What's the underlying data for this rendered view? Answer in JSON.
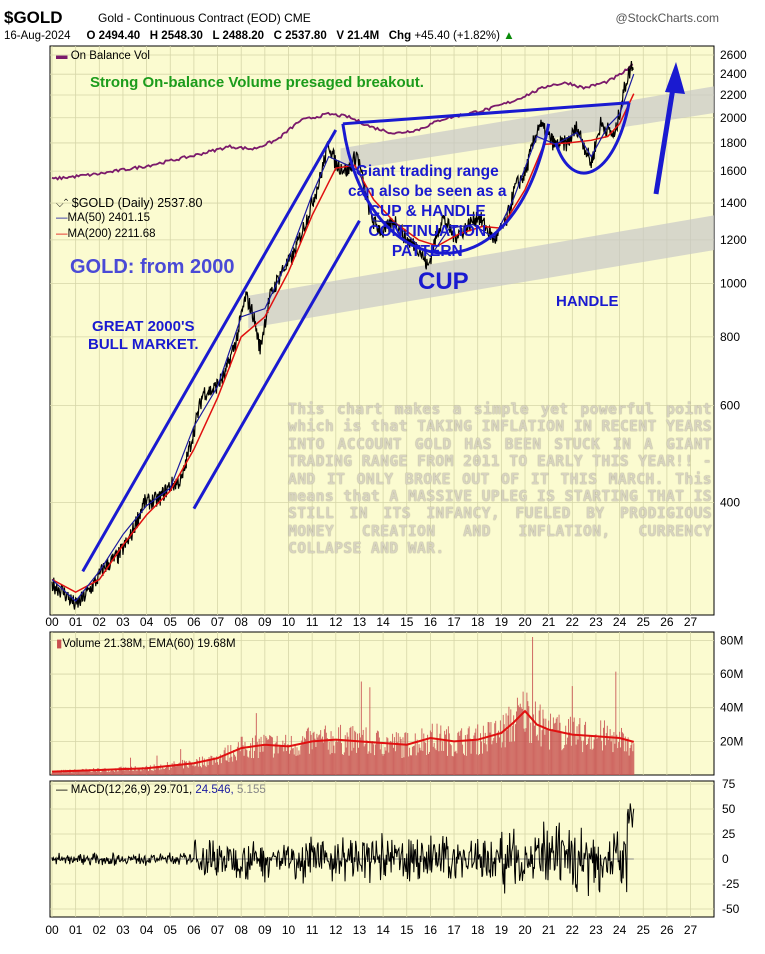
{
  "header": {
    "ticker": "$GOLD",
    "subtitle": "Gold - Continuous Contract (EOD) CME",
    "source": "@StockCharts.com",
    "date": "16-Aug-2024",
    "open": "O 2494.40",
    "high": "H 2548.30",
    "low": "L 2488.20",
    "close": "C 2537.80",
    "volume": "V 21.4M",
    "chg_label": "Chg",
    "chg_value": "+45.40 (+1.82%)",
    "chg_arrow": "▲"
  },
  "colors": {
    "plot_bg": "#fbfbd0",
    "grid": "#d6d6a8",
    "price": "#000000",
    "ma50": "#1a1aa0",
    "ma200": "#e01010",
    "obv": "#7b1a6b",
    "annotation_blue": "#1a1ad0",
    "annotation_green": "#1c9c1c",
    "volume_fill": "#c85050",
    "volume_ema": "#e01010",
    "band": "#c8c8c8"
  },
  "obv_legend": "On Balance Vol",
  "price_legend": {
    "gold": "$GOLD (Daily) 2537.80",
    "ma50": "MA(50) 2401.15",
    "ma200": "MA(200) 2211.68"
  },
  "annotations": {
    "obv_note": "Strong On-balance Volume presaged breakout.",
    "range_note": [
      "Giant trading range",
      "can also be seen as a",
      "CUP & HANDLE",
      "CONTINUATION",
      "PATTERN"
    ],
    "gold_from": "GOLD: from 2000",
    "cup": "CUP",
    "handle": "HANDLE",
    "bull_market": [
      "GREAT 2000'S",
      "BULL MARKET."
    ],
    "commentary": "This chart makes a simple yet powerful point which is that TAKING INFLATION IN RECENT YEARS INTO ACCOUNT GOLD HAS BEEN STUCK IN A GIANT TRADING RANGE FROM 2011 TO EARLY THIS YEAR!! - AND IT ONLY BROKE OUT OF IT THIS MARCH. This means that A MASSIVE UPLEG IS STARTING THAT IS STILL IN ITS INFANCY, FUELED BY PRODIGIOUS MONEY CREATION AND INFLATION, CURRENCY COLLAPSE AND WAR."
  },
  "volume_legend": "Volume 21.38M, EMA(60) 19.68M",
  "macd_legend": {
    "label": "MACD(12,26,9)",
    "macd": "29.701,",
    "signal": "24.546,",
    "hist": "5.155"
  },
  "chart_data": [
    {
      "type": "line",
      "panel": "price",
      "scale": "log",
      "x_ticks": [
        "00",
        "01",
        "02",
        "03",
        "04",
        "05",
        "06",
        "07",
        "08",
        "09",
        "10",
        "11",
        "12",
        "13",
        "14",
        "15",
        "16",
        "17",
        "18",
        "19",
        "20",
        "21",
        "22",
        "23",
        "24",
        "25",
        "26",
        "27"
      ],
      "y_ticks": [
        400,
        600,
        800,
        1000,
        1200,
        1400,
        1600,
        1800,
        2000,
        2200,
        2400,
        2600
      ],
      "ylim": [
        250,
        2700
      ],
      "series": [
        {
          "name": "$GOLD (Daily)",
          "x": [
            2000.0,
            2000.5,
            2001.0,
            2001.3,
            2001.8,
            2002.2,
            2002.8,
            2003.3,
            2003.9,
            2004.5,
            2005.0,
            2005.5,
            2006.0,
            2006.4,
            2006.8,
            2007.3,
            2007.8,
            2008.2,
            2008.5,
            2008.8,
            2009.2,
            2009.7,
            2010.2,
            2010.8,
            2011.3,
            2011.7,
            2012.0,
            2012.5,
            2012.9,
            2013.3,
            2013.6,
            2014.0,
            2014.5,
            2015.0,
            2015.5,
            2015.9,
            2016.5,
            2017.0,
            2017.5,
            2018.0,
            2018.7,
            2019.2,
            2019.6,
            2020.0,
            2020.6,
            2020.9,
            2021.3,
            2021.8,
            2022.2,
            2022.8,
            2023.2,
            2023.8,
            2024.0,
            2024.3,
            2024.6
          ],
          "y": [
            285,
            275,
            260,
            268,
            285,
            305,
            320,
            345,
            400,
            405,
            430,
            440,
            540,
            635,
            640,
            680,
            790,
            950,
            880,
            760,
            940,
            1050,
            1120,
            1320,
            1530,
            1800,
            1650,
            1600,
            1720,
            1420,
            1290,
            1240,
            1300,
            1200,
            1160,
            1070,
            1320,
            1220,
            1260,
            1330,
            1200,
            1290,
            1500,
            1580,
            1950,
            1870,
            1780,
            1800,
            1920,
            1650,
            1950,
            1850,
            2050,
            2350,
            2537.8
          ]
        },
        {
          "name": "MA(50)",
          "x": [
            2000.0,
            2001.0,
            2002.0,
            2003.0,
            2004.0,
            2005.0,
            2006.0,
            2007.0,
            2008.0,
            2009.0,
            2010.0,
            2011.0,
            2011.7,
            2012.5,
            2013.0,
            2013.6,
            2014.5,
            2015.5,
            2016.0,
            2016.8,
            2017.8,
            2018.7,
            2019.5,
            2020.5,
            2021.3,
            2022.2,
            2022.8,
            2023.5,
            2024.0,
            2024.6
          ],
          "y": [
            290,
            265,
            300,
            350,
            395,
            425,
            550,
            650,
            870,
            900,
            1110,
            1450,
            1700,
            1640,
            1600,
            1300,
            1290,
            1170,
            1120,
            1260,
            1280,
            1210,
            1420,
            1850,
            1790,
            1880,
            1700,
            1930,
            2030,
            2401.15
          ]
        },
        {
          "name": "MA(200)",
          "x": [
            2000.0,
            2001.0,
            2002.0,
            2003.0,
            2004.0,
            2005.0,
            2006.0,
            2007.0,
            2008.0,
            2009.0,
            2010.0,
            2011.0,
            2012.0,
            2012.8,
            2013.6,
            2014.5,
            2015.5,
            2016.3,
            2017.2,
            2018.2,
            2019.0,
            2020.0,
            2020.8,
            2021.8,
            2022.8,
            2023.5,
            2024.0,
            2024.6
          ],
          "y": [
            290,
            275,
            290,
            335,
            380,
            420,
            500,
            620,
            800,
            870,
            1050,
            1330,
            1620,
            1640,
            1420,
            1290,
            1200,
            1170,
            1230,
            1270,
            1260,
            1480,
            1790,
            1800,
            1820,
            1850,
            1950,
            2211.68
          ]
        }
      ]
    },
    {
      "type": "line",
      "panel": "obv",
      "name": "On Balance Vol",
      "x": [
        2000.0,
        2002.0,
        2004.0,
        2006.0,
        2007.5,
        2008.5,
        2009.5,
        2010.5,
        2011.7,
        2012.5,
        2013.5,
        2014.5,
        2015.5,
        2016.5,
        2017.5,
        2018.5,
        2019.5,
        2020.5,
        2021.0,
        2021.8,
        2022.5,
        2023.5,
        2024.0,
        2024.6
      ],
      "y": [
        10,
        14,
        20,
        28,
        35,
        33,
        40,
        55,
        60,
        58,
        50,
        45,
        48,
        56,
        60,
        64,
        70,
        78,
        82,
        84,
        80,
        85,
        90,
        98
      ]
    },
    {
      "type": "bar",
      "panel": "volume",
      "y_ticks_labels": [
        "80M",
        "60M",
        "40M",
        "20M"
      ],
      "y_ticks": [
        80,
        60,
        40,
        20
      ],
      "ylim": [
        0,
        85
      ],
      "ema_name": "EMA(60)",
      "ema_x": [
        2000,
        2002,
        2004,
        2006,
        2007,
        2008,
        2009,
        2010,
        2011,
        2012,
        2013,
        2014,
        2015,
        2016,
        2017,
        2018,
        2019,
        2019.5,
        2020,
        2020.5,
        2021,
        2022,
        2023,
        2024,
        2024.6
      ],
      "ema_y": [
        2,
        3,
        4,
        7,
        10,
        16,
        18,
        17,
        20,
        21,
        20,
        19,
        18,
        22,
        20,
        21,
        25,
        31,
        38,
        30,
        27,
        24,
        23,
        22,
        19.68
      ]
    },
    {
      "type": "line",
      "panel": "macd",
      "y_ticks": [
        75,
        50,
        25,
        0,
        -25,
        -50
      ],
      "ylim": [
        -58,
        78
      ],
      "series_names": [
        "MACD(12,26,9)"
      ]
    }
  ]
}
